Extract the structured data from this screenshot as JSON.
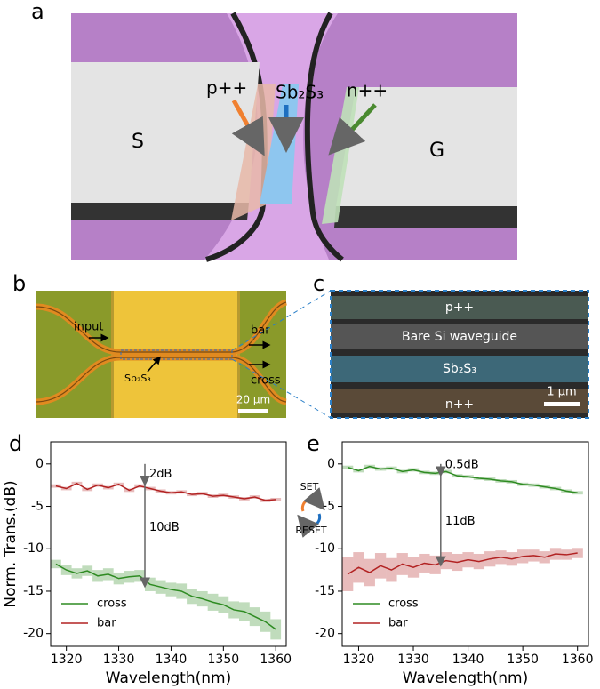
{
  "panel_labels": [
    "a",
    "b",
    "c",
    "d",
    "e"
  ],
  "panel_a": {
    "left_pad": "S",
    "right_pad": "G",
    "p_doped": "p++",
    "pcm": "Sb₂S₃",
    "n_doped": "n++"
  },
  "panel_b": {
    "input": "input",
    "bar": "bar",
    "cross": "cross",
    "pcm": "Sb₂S₃",
    "scale": "20 µm"
  },
  "panel_c": {
    "p_doped": "p++",
    "waveguide": "Bare Si waveguide",
    "pcm": "Sb₂S₃",
    "n_doped": "n++",
    "scale": "1 µm"
  },
  "switch": {
    "set": "SET",
    "reset": "RESET"
  },
  "chart_data": [
    {
      "type": "line",
      "y_label": "Norm. Trans.(dB)",
      "x_label": "Wavelength(nm)",
      "x": [
        1318,
        1320,
        1322,
        1324,
        1326,
        1328,
        1330,
        1332,
        1334,
        1336,
        1338,
        1340,
        1342,
        1344,
        1346,
        1348,
        1350,
        1352,
        1354,
        1356,
        1358,
        1360
      ],
      "xlim": [
        1317,
        1362
      ],
      "xticks": [
        1320,
        1330,
        1340,
        1350,
        1360
      ],
      "ylim": [
        -21.5,
        2.6
      ],
      "yticks": [
        0,
        -5,
        -10,
        -15,
        -20
      ],
      "legend": "lower left",
      "annotations": [
        "2dB",
        "10dB"
      ],
      "series": [
        {
          "name": "cross",
          "color": "#2e8b22",
          "values": [
            -11.8,
            -12.5,
            -12.9,
            -12.6,
            -13.2,
            -13.0,
            -13.5,
            -13.3,
            -13.2,
            -14.2,
            -14.5,
            -14.8,
            -15.0,
            -15.6,
            -15.9,
            -16.3,
            -16.6,
            -17.2,
            -17.4,
            -18.0,
            -18.6,
            -19.5
          ],
          "errors": [
            0.5,
            0.6,
            0.6,
            0.6,
            0.7,
            0.7,
            0.7,
            0.7,
            0.7,
            0.8,
            0.8,
            0.8,
            0.9,
            0.9,
            0.9,
            1.0,
            1.0,
            1.0,
            1.1,
            1.1,
            1.2,
            1.2
          ]
        },
        {
          "name": "bar",
          "color": "#b22222",
          "values": [
            -2.6,
            -2.9,
            -2.3,
            -3.0,
            -2.5,
            -2.8,
            -2.4,
            -3.1,
            -2.6,
            -2.9,
            -3.2,
            -3.4,
            -3.3,
            -3.6,
            -3.5,
            -3.8,
            -3.7,
            -3.9,
            -4.1,
            -3.9,
            -4.3,
            -4.2
          ],
          "errors": [
            0.2,
            0.2,
            0.2,
            0.2,
            0.2,
            0.2,
            0.2,
            0.2,
            0.2,
            0.2,
            0.2,
            0.2,
            0.2,
            0.2,
            0.2,
            0.2,
            0.2,
            0.2,
            0.2,
            0.2,
            0.2,
            0.2
          ]
        }
      ]
    },
    {
      "type": "line",
      "x_label": "Wavelength(nm)",
      "x": [
        1318,
        1320,
        1322,
        1324,
        1326,
        1328,
        1330,
        1332,
        1334,
        1336,
        1338,
        1340,
        1342,
        1344,
        1346,
        1348,
        1350,
        1352,
        1354,
        1356,
        1358,
        1360
      ],
      "xlim": [
        1317,
        1362
      ],
      "xticks": [
        1320,
        1330,
        1340,
        1350,
        1360
      ],
      "ylim": [
        -21.5,
        2.6
      ],
      "yticks": [
        0,
        -5,
        -10,
        -15,
        -20
      ],
      "legend": "lower left",
      "annotations": [
        "0.5dB",
        "11dB"
      ],
      "series": [
        {
          "name": "cross",
          "color": "#2e8b22",
          "values": [
            -0.4,
            -0.8,
            -0.3,
            -0.6,
            -0.5,
            -0.9,
            -0.7,
            -1.0,
            -1.1,
            -0.9,
            -1.4,
            -1.5,
            -1.7,
            -1.8,
            -2.0,
            -2.1,
            -2.4,
            -2.5,
            -2.7,
            -2.9,
            -3.2,
            -3.4
          ],
          "errors": [
            0.2,
            0.2,
            0.2,
            0.2,
            0.2,
            0.2,
            0.2,
            0.2,
            0.2,
            0.2,
            0.2,
            0.2,
            0.2,
            0.2,
            0.2,
            0.2,
            0.2,
            0.2,
            0.2,
            0.2,
            0.2,
            0.2
          ]
        },
        {
          "name": "bar",
          "color": "#b22222",
          "values": [
            -13.0,
            -12.2,
            -12.8,
            -12.0,
            -12.5,
            -11.8,
            -12.2,
            -11.7,
            -11.9,
            -11.4,
            -11.6,
            -11.3,
            -11.5,
            -11.2,
            -11.0,
            -11.2,
            -10.9,
            -10.8,
            -11.0,
            -10.6,
            -10.7,
            -10.5
          ],
          "errors": [
            2.0,
            1.8,
            1.6,
            1.5,
            1.4,
            1.3,
            1.2,
            1.1,
            1.1,
            1.0,
            1.0,
            0.9,
            0.9,
            0.9,
            0.8,
            0.8,
            0.8,
            0.7,
            0.7,
            0.7,
            0.6,
            0.6
          ]
        }
      ]
    }
  ]
}
